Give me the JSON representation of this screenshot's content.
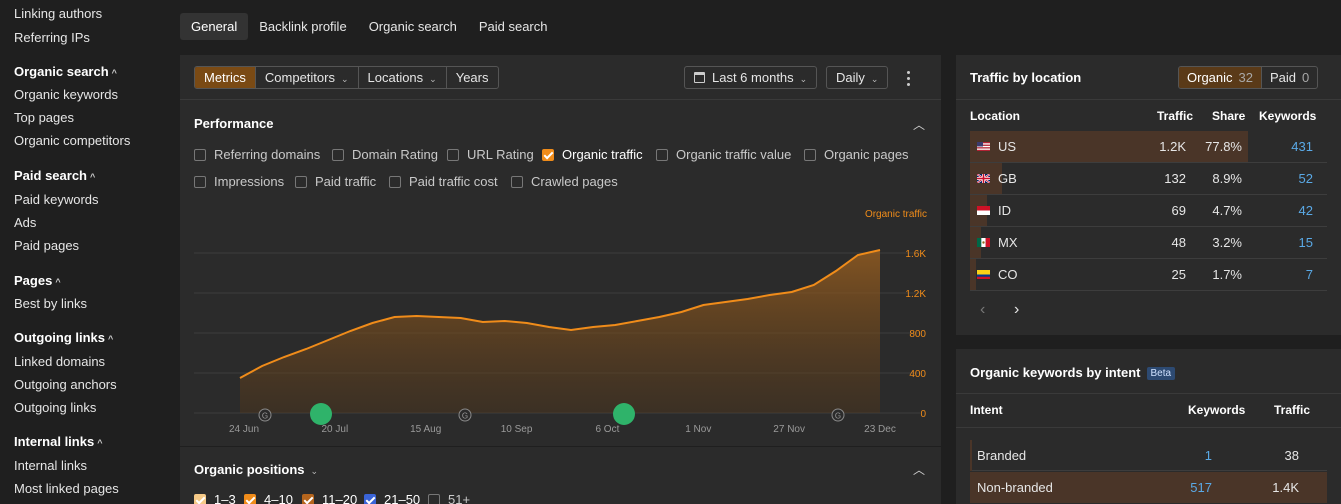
{
  "sidebar": {
    "items_top": [
      "Linking authors",
      "Referring IPs"
    ],
    "sections": [
      {
        "title": "Organic search",
        "items": [
          "Organic keywords",
          "Top pages",
          "Organic competitors"
        ]
      },
      {
        "title": "Paid search",
        "items": [
          "Paid keywords",
          "Ads",
          "Paid pages"
        ]
      },
      {
        "title": "Pages",
        "items": [
          "Best by links"
        ]
      },
      {
        "title": "Outgoing links",
        "items": [
          "Linked domains",
          "Outgoing anchors",
          "Outgoing links"
        ]
      },
      {
        "title": "Internal links",
        "items": [
          "Internal links",
          "Most linked pages"
        ]
      }
    ]
  },
  "tabs": [
    "General",
    "Backlink profile",
    "Organic search",
    "Paid search"
  ],
  "toolbar": {
    "segments": [
      "Metrics",
      "Competitors",
      "Locations",
      "Years"
    ],
    "date_range": "Last 6 months",
    "granularity": "Daily",
    "more_icon": "kebab-icon"
  },
  "performance": {
    "title": "Performance",
    "checkboxes_row1": [
      {
        "label": "Referring domains",
        "checked": false
      },
      {
        "label": "Domain Rating",
        "checked": false
      },
      {
        "label": "URL Rating",
        "checked": false
      },
      {
        "label": "Organic traffic",
        "checked": true
      },
      {
        "label": "Organic traffic value",
        "checked": false
      },
      {
        "label": "Organic pages",
        "checked": false
      }
    ],
    "checkboxes_row2": [
      {
        "label": "Impressions",
        "checked": false
      },
      {
        "label": "Paid traffic",
        "checked": false
      },
      {
        "label": "Paid traffic cost",
        "checked": false
      },
      {
        "label": "Crawled pages",
        "checked": false
      }
    ]
  },
  "chart_data": {
    "type": "area",
    "series": [
      {
        "name": "Organic traffic",
        "color": "#f08c1a"
      }
    ],
    "x_ticks": [
      "24 Jun",
      "20 Jul",
      "15 Aug",
      "10 Sep",
      "6 Oct",
      "1 Nov",
      "27 Nov",
      "23 Dec"
    ],
    "y_ticks": [
      "1.6K",
      "1.2K",
      "800",
      "400",
      "0"
    ],
    "ylim": [
      0,
      1700
    ],
    "grid": true,
    "x": [
      "24 Jun",
      "1 Jul",
      "8 Jul",
      "15 Jul",
      "20 Jul",
      "27 Jul",
      "3 Aug",
      "10 Aug",
      "15 Aug",
      "22 Aug",
      "29 Aug",
      "5 Sep",
      "10 Sep",
      "17 Sep",
      "24 Sep",
      "1 Oct",
      "6 Oct",
      "13 Oct",
      "20 Oct",
      "27 Oct",
      "1 Nov",
      "8 Nov",
      "15 Nov",
      "22 Nov",
      "27 Nov",
      "4 Dec",
      "11 Dec",
      "16 Dec",
      "20 Dec",
      "23 Dec"
    ],
    "values": [
      350,
      470,
      560,
      640,
      730,
      820,
      900,
      960,
      970,
      960,
      950,
      910,
      920,
      900,
      860,
      830,
      860,
      880,
      920,
      960,
      1010,
      1080,
      1110,
      1140,
      1180,
      1210,
      1280,
      1420,
      1580,
      1630
    ],
    "markers": [
      {
        "type": "google-update",
        "label": "G"
      },
      {
        "type": "annotation",
        "label": ""
      },
      {
        "type": "google-update",
        "label": "G"
      },
      {
        "type": "annotation",
        "label": ""
      },
      {
        "type": "google-update",
        "label": "G"
      }
    ]
  },
  "positions": {
    "title": "Organic positions",
    "checkboxes": [
      {
        "label": "1–3",
        "checked": true
      },
      {
        "label": "4–10",
        "checked": true
      },
      {
        "label": "11–20",
        "checked": true
      },
      {
        "label": "21–50",
        "checked": true
      },
      {
        "label": "51+",
        "checked": false
      }
    ]
  },
  "traffic_by_location": {
    "title": "Traffic by location",
    "toggle": [
      {
        "label": "Organic",
        "count": "32"
      },
      {
        "label": "Paid",
        "count": "0"
      }
    ],
    "headers": [
      "Location",
      "Traffic",
      "Share",
      "Keywords"
    ],
    "rows": [
      {
        "code": "US",
        "traffic": "1.2K",
        "share": "77.8%",
        "keywords": "431",
        "share_value": 0.778
      },
      {
        "code": "GB",
        "traffic": "132",
        "share": "8.9%",
        "keywords": "52",
        "share_value": 0.089
      },
      {
        "code": "ID",
        "traffic": "69",
        "share": "4.7%",
        "keywords": "42",
        "share_value": 0.047
      },
      {
        "code": "MX",
        "traffic": "48",
        "share": "3.2%",
        "keywords": "15",
        "share_value": 0.032
      },
      {
        "code": "CO",
        "traffic": "25",
        "share": "1.7%",
        "keywords": "7",
        "share_value": 0.017
      }
    ]
  },
  "intent": {
    "title": "Organic keywords by intent",
    "badge": "Beta",
    "headers": [
      "Intent",
      "Keywords",
      "Traffic"
    ],
    "rows": [
      {
        "intent": "Branded",
        "keywords": "1",
        "traffic": "38"
      },
      {
        "intent": "Non-branded",
        "keywords": "517",
        "traffic": "1.4K"
      }
    ]
  },
  "colors": {
    "accent": "#f08c1a",
    "link": "#5aa9e6",
    "marker_green": "#2fb36a"
  }
}
